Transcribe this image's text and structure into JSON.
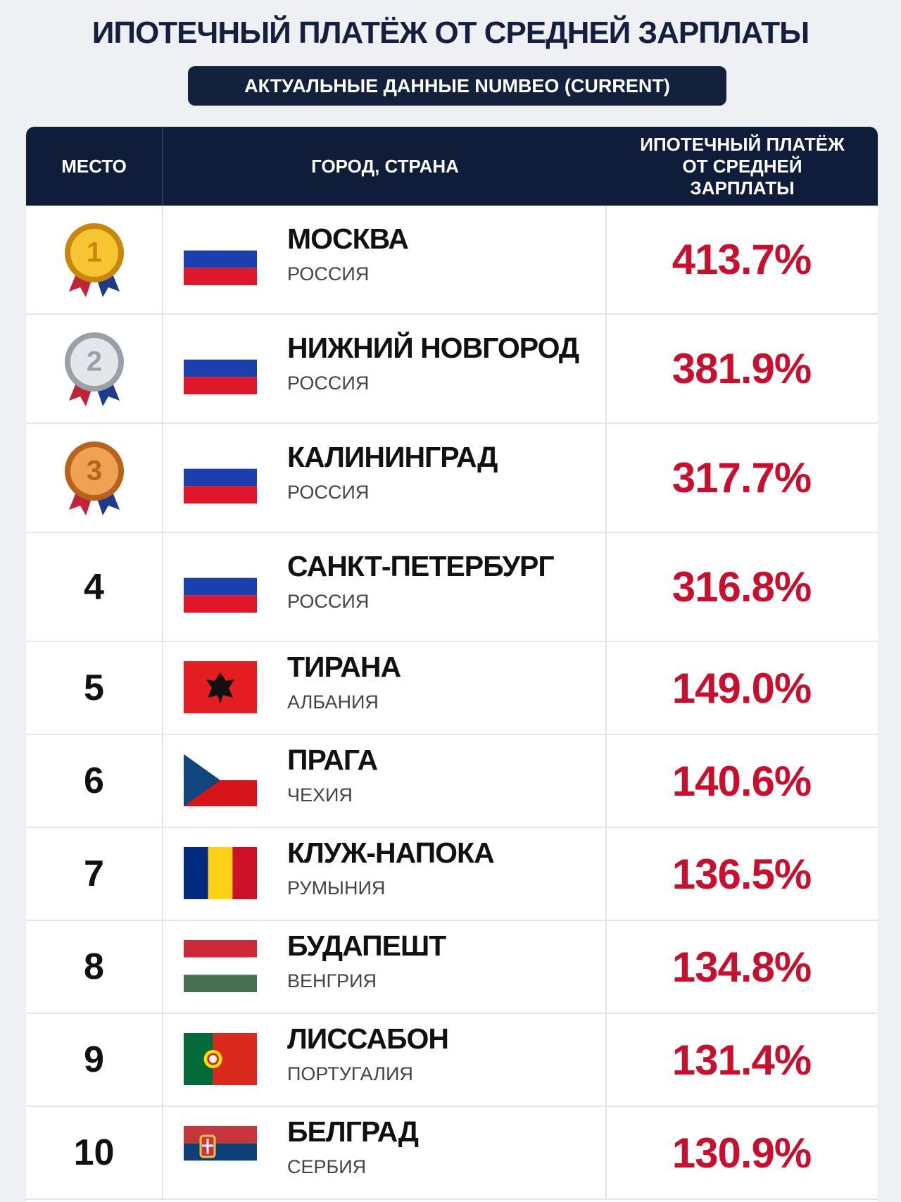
{
  "header": {
    "title": "ИПОТЕЧНЫЙ ПЛАТЁЖ ОТ СРЕДНЕЙ ЗАРПЛАТЫ",
    "subtitle": "АКТУАЛЬНЫЕ ДАННЫЕ NUMBEO (CURRENT)"
  },
  "table": {
    "columns": [
      "МЕСТО",
      "ГОРОД, СТРАНА",
      "ИПОТЕЧНЫЙ ПЛАТЁЖ ОТ СРЕДНЕЙ ЗАРПЛАТЫ"
    ],
    "rows": [
      {
        "rank": "1",
        "city": "МОСКВА",
        "country": "РОССИЯ",
        "value": "413.7%"
      },
      {
        "rank": "2",
        "city": "НИЖНИЙ НОВГОРОД",
        "country": "РОССИЯ",
        "value": "381.9%"
      },
      {
        "rank": "3",
        "city": "КАЛИНИНГРАД",
        "country": "РОССИЯ",
        "value": "317.7%"
      },
      {
        "rank": "4",
        "city": "САНКТ-ПЕТЕРБУРГ",
        "country": "РОССИЯ",
        "value": "316.8%"
      },
      {
        "rank": "5",
        "city": "ТИРАНА",
        "country": "АЛБАНИЯ",
        "value": "149.0%"
      },
      {
        "rank": "6",
        "city": "ПРАГА",
        "country": "ЧЕХИЯ",
        "value": "140.6%"
      },
      {
        "rank": "7",
        "city": "КЛУЖ-НАПОКА",
        "country": "РУМЫНИЯ",
        "value": "136.5%"
      },
      {
        "rank": "8",
        "city": "БУДАПЕШТ",
        "country": "ВЕНГРИЯ",
        "value": "134.8%"
      },
      {
        "rank": "9",
        "city": "ЛИССАБОН",
        "country": "ПОРТУГАЛИЯ",
        "value": "131.4%"
      },
      {
        "rank": "10",
        "city": "БЕЛГРАД",
        "country": "СЕРБИЯ",
        "value": "130.9%"
      }
    ]
  }
}
